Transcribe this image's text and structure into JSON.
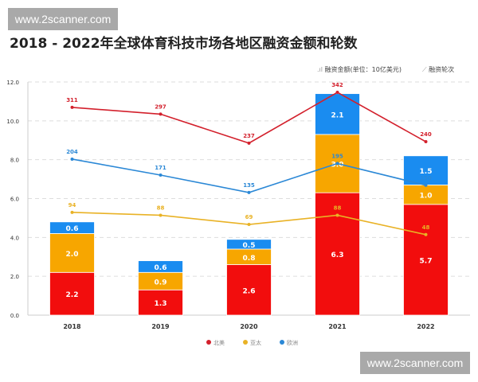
{
  "watermark": "www.2scanner.com",
  "title": "2018 - 2022年全球体育科技市场各地区融资金额和轮数",
  "header_legend": {
    "bars": "融资金额(单位：10亿美元)",
    "lines": "融资轮次"
  },
  "chart_data": {
    "type": "bar",
    "title": "2018 - 2022年全球体育科技市场各地区融资金额和轮数",
    "categories": [
      "2018",
      "2019",
      "2020",
      "2021",
      "2022"
    ],
    "ylim": [
      0,
      12
    ],
    "yticks": [
      "0.0",
      "2.0",
      "4.0",
      "6.0",
      "8.0",
      "10.0",
      "12.0"
    ],
    "grid": true,
    "legend": "bottom",
    "stacked": true,
    "series": [
      {
        "name": "北美",
        "color": "#f20d0d",
        "line_color": "#d3202c",
        "values": [
          2.2,
          1.3,
          2.6,
          6.3,
          5.7
        ],
        "rounds": [
          311,
          297,
          237,
          342,
          240
        ]
      },
      {
        "name": "亚太",
        "color": "#f7a600",
        "line_color": "#e9b225",
        "values": [
          2.0,
          0.9,
          0.8,
          3.0,
          1.0
        ],
        "rounds": [
          94,
          88,
          69,
          88,
          48
        ]
      },
      {
        "name": "欧洲",
        "color": "#1a8cf0",
        "line_color": "#2b88d6",
        "values": [
          0.6,
          0.6,
          0.5,
          2.1,
          1.5
        ],
        "rounds": [
          204,
          171,
          135,
          195,
          150
        ]
      }
    ]
  }
}
